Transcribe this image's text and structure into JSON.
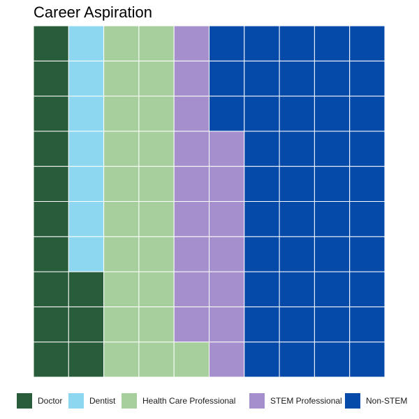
{
  "chart_data": {
    "type": "waffle",
    "title": "Career Aspiration",
    "grid": {
      "rows": 10,
      "cols": 10,
      "fill_order": "column-major, bottom-to-top, left-to-right"
    },
    "categories": [
      "Doctor",
      "Dentist",
      "Health Care Professional",
      "STEM Professional",
      "Non-STEM"
    ],
    "values": [
      13,
      7,
      21,
      16,
      43
    ],
    "colors": [
      "#285C3A",
      "#8DD8F0",
      "#A7CF9D",
      "#A590CD",
      "#0549A9"
    ],
    "gridline_color": "#FFFFFF",
    "legend_position": "bottom"
  }
}
